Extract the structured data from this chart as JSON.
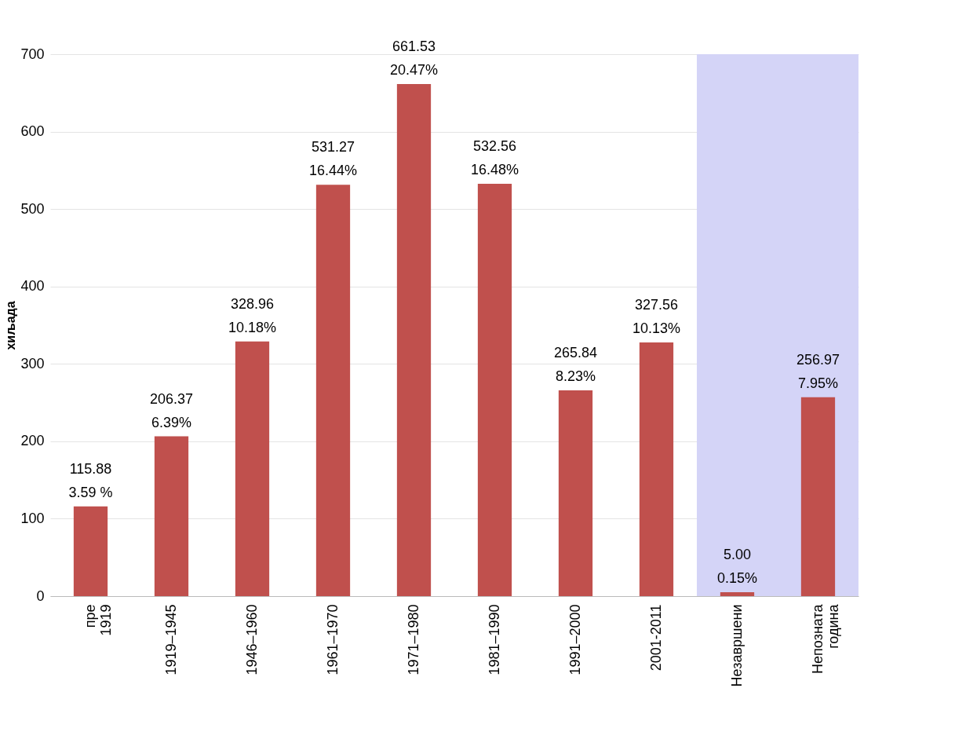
{
  "chart_data": {
    "type": "bar",
    "ylabel": "хиљада",
    "categories": [
      "пре\n1919",
      "1919–1945",
      "1946–1960",
      "1961–1970",
      "1971–1980",
      "1981–1990",
      "1991–2000",
      "2001-2011",
      "Незавршени",
      "Непозната\nгодина"
    ],
    "values": [
      115.88,
      206.37,
      328.96,
      531.27,
      661.53,
      532.56,
      265.84,
      327.56,
      5.0,
      256.97
    ],
    "value_labels": [
      "115.88\n3.59 %",
      "206.37\n6.39%",
      "328.96\n10.18%",
      "531.27\n16.44%",
      "661.53\n20.47%",
      "532.56\n16.48%",
      "265.84\n8.23%",
      "327.56\n10.13%",
      "5.00\n0.15%",
      "256.97\n7.95%"
    ],
    "color": "#c0504d",
    "ylim": [
      0,
      700
    ],
    "yticks": [
      0,
      100,
      200,
      300,
      400,
      500,
      600,
      700
    ],
    "grid": "y",
    "bands": [
      {
        "axis": "x",
        "from": "Незавршени",
        "to": "Непозната\nгодина",
        "color": "#d4d4f7"
      }
    ]
  }
}
